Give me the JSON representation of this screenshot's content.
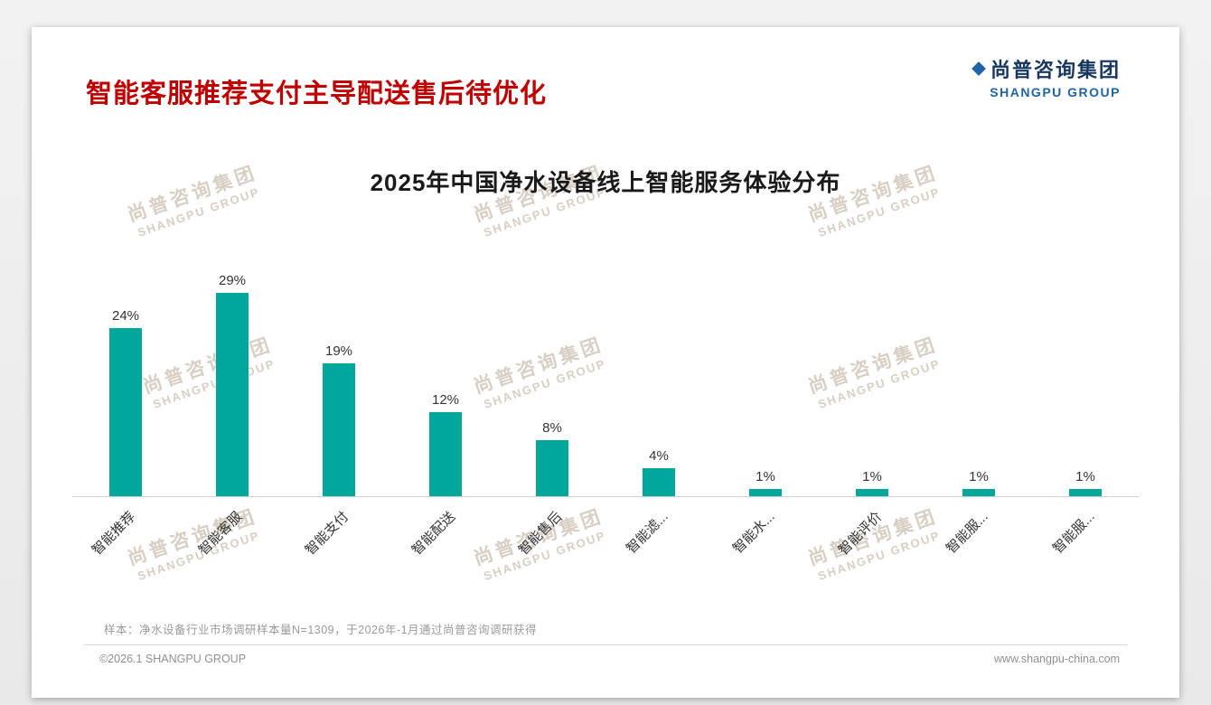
{
  "header": {
    "title": "智能客服推荐支付主导配送售后待优化",
    "logo": {
      "cn": "尚普咨询集团",
      "en": "SHANGPU GROUP"
    }
  },
  "watermark": {
    "cn": "尚普咨询集团",
    "en": "SHANGPU GROUP"
  },
  "chart_data": {
    "type": "bar",
    "title": "2025年中国净水设备线上智能服务体验分布",
    "categories": [
      "智能推荐",
      "智能客服",
      "智能支付",
      "智能配送",
      "智能售后",
      "智能滤...",
      "智能水...",
      "智能评价",
      "智能服...",
      "智能服..."
    ],
    "values": [
      24,
      29,
      19,
      12,
      8,
      4,
      1,
      1,
      1,
      1
    ],
    "value_labels": [
      "24%",
      "29%",
      "19%",
      "12%",
      "8%",
      "4%",
      "1%",
      "1%",
      "1%",
      "1%"
    ],
    "bar_color": "#00A79B",
    "ylim": [
      0,
      32
    ],
    "xlabel": "",
    "ylabel": "",
    "grid": false,
    "legend": false
  },
  "footer": {
    "note": "样本：净水设备行业市场调研样本量N=1309，于2026年-1月通过尚普咨询调研获得",
    "copyright": "©2026.1 SHANGPU GROUP",
    "website": "www.shangpu-china.com"
  },
  "colors": {
    "title_red": "#C00000",
    "bar_teal": "#00A79B",
    "logo_blue": "#17375E",
    "logo_blue_light": "#2063A6"
  }
}
